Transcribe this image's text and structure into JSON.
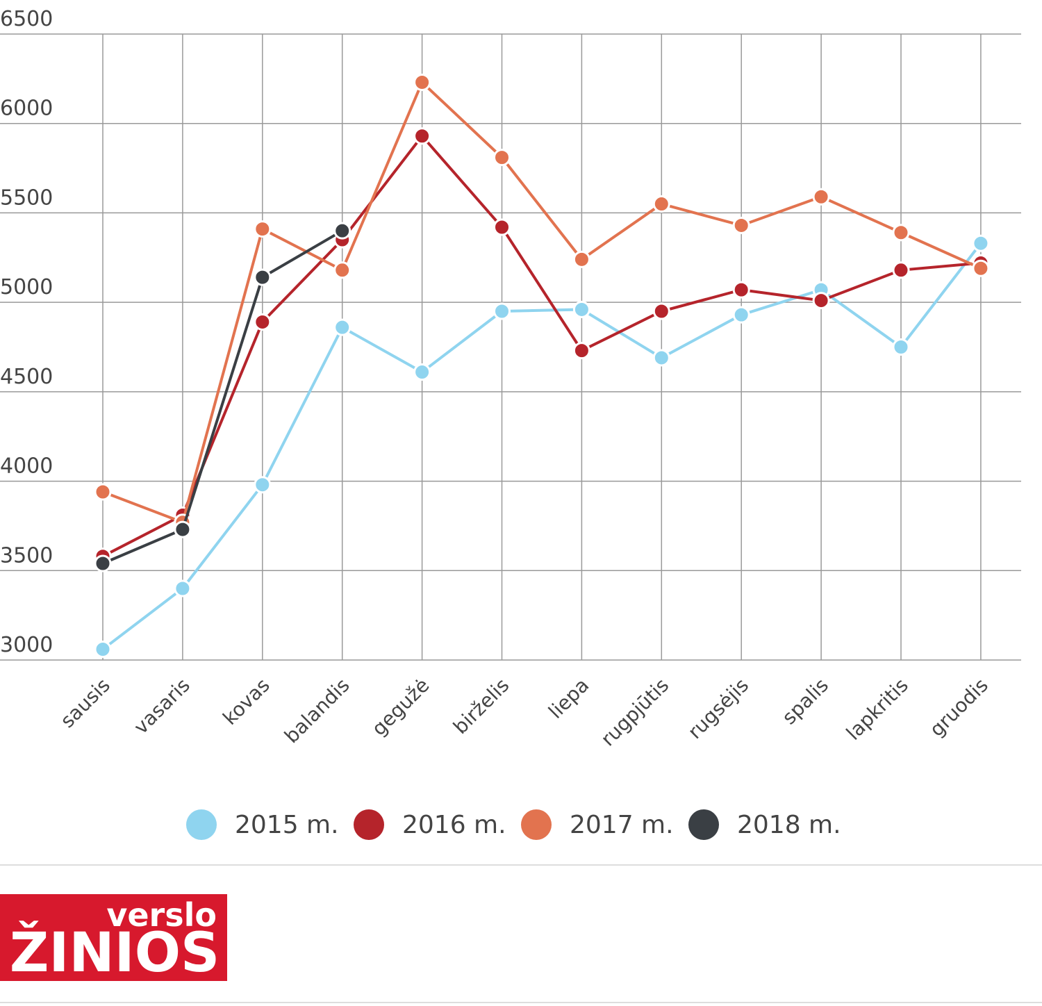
{
  "chart_data": {
    "type": "line",
    "categories": [
      "sausis",
      "vasaris",
      "kovas",
      "balandis",
      "gegužė",
      "birželis",
      "liepa",
      "rugpjūtis",
      "rugsėjis",
      "spalis",
      "lapkritis",
      "gruodis"
    ],
    "series": [
      {
        "name": "2015 m.",
        "color": "#8fd4ef",
        "values": [
          3060,
          3400,
          3980,
          4860,
          4610,
          4950,
          4960,
          4690,
          4930,
          5070,
          4750,
          5330
        ]
      },
      {
        "name": "2016 m.",
        "color": "#b5242b",
        "values": [
          3580,
          3810,
          4890,
          5350,
          5930,
          5420,
          4730,
          4950,
          5070,
          5010,
          5180,
          5220
        ]
      },
      {
        "name": "2017 m.",
        "color": "#e2734f",
        "values": [
          3940,
          3770,
          5410,
          5180,
          6230,
          5810,
          5240,
          5550,
          5430,
          5590,
          5390,
          5190
        ]
      },
      {
        "name": "2018 m.",
        "color": "#3a3f44",
        "values": [
          3540,
          3730,
          5140,
          5400,
          null,
          null,
          null,
          null,
          null,
          null,
          null,
          null
        ]
      }
    ],
    "ylim": [
      3000,
      6500
    ],
    "yticks": [
      3000,
      3500,
      4000,
      4500,
      5000,
      5500,
      6000,
      6500
    ],
    "grid": true,
    "legend": "bottom",
    "logo": {
      "top": "verslo",
      "bottom": "ŽINIOS"
    }
  }
}
